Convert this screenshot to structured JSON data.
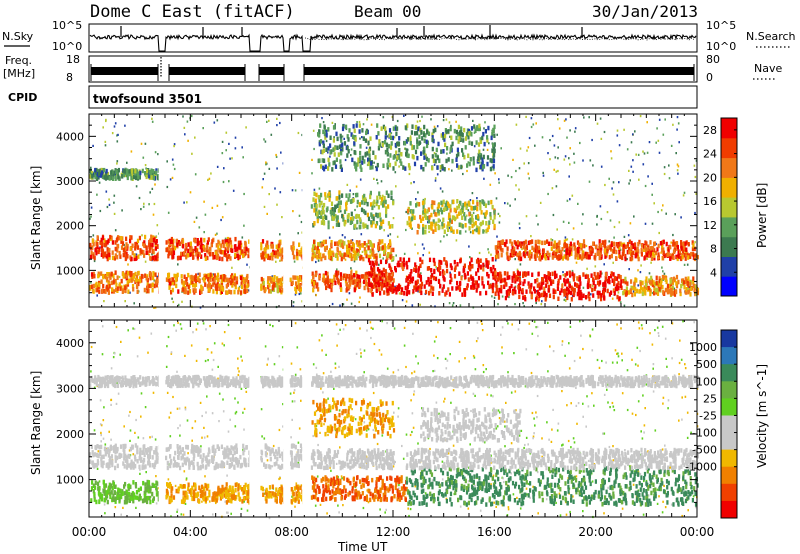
{
  "header": {
    "station": "Dome C East (fitACF)",
    "beam": "Beam 00",
    "date": "30/Jan/2013"
  },
  "strips": {
    "nsky_label": "N.Sky",
    "nsky_ticks": [
      "10^5",
      "10^0"
    ],
    "nsearch_label": "N.Search",
    "nsearch_ticks": [
      "10^5",
      "10^0"
    ],
    "freq_label_1": "Freq.",
    "freq_label_2": "[MHz]",
    "freq_ticks": [
      "18",
      "8"
    ],
    "nave_label": "Nave",
    "nave_ticks": [
      "80",
      "0"
    ],
    "cpid_label": "CPID",
    "cpid_value": "twofsound 3501"
  },
  "panels": {
    "ylabel": "Slant Range [km]",
    "xlabel": "Time UT",
    "y_ticks": [
      "4000",
      "3000",
      "2000",
      "1000"
    ],
    "x_ticks": [
      "00:00",
      "04:00",
      "08:00",
      "12:00",
      "16:00",
      "20:00",
      "00:00"
    ]
  },
  "power_bar": {
    "label": "Power [dB]",
    "ticks": [
      "28",
      "24",
      "20",
      "16",
      "12",
      "8",
      "4"
    ],
    "colors": [
      "#0000ff",
      "#2040a8",
      "#3c7a50",
      "#5aa05a",
      "#b8c830",
      "#f0b000",
      "#f07818",
      "#f03c00",
      "#f00000"
    ]
  },
  "velocity_bar": {
    "label": "Velocity [m s^-1]",
    "ticks": [
      "1000",
      "500",
      "100",
      "25",
      "-25",
      "-100",
      "-500",
      "-1000"
    ],
    "colors": [
      "#1838a0",
      "#2c78b8",
      "#3a8a5a",
      "#6ab040",
      "#60d020",
      "#c8c8c8",
      "#c8c8c8",
      "#f0b800",
      "#f08000",
      "#f04000",
      "#f00000"
    ]
  },
  "chart_data": [
    {
      "type": "heatmap",
      "title": "Power [dB]",
      "xlabel": "Time UT",
      "ylabel": "Slant Range [km]",
      "xlim": [
        "00:00",
        "24:00"
      ],
      "ylim": [
        180,
        4500
      ],
      "clim": [
        0,
        30
      ],
      "data_gaps_ut": [
        [
          "02:45",
          "03:00"
        ],
        [
          "06:20",
          "06:45"
        ],
        [
          "07:40",
          "07:55"
        ],
        [
          "08:25",
          "08:45"
        ]
      ],
      "echo_regions": [
        {
          "time": [
            "00:00",
            "02:45"
          ],
          "range": [
            1300,
            1800
          ],
          "value": 24
        },
        {
          "time": [
            "00:00",
            "02:45"
          ],
          "range": [
            550,
            1000
          ],
          "value": 22
        },
        {
          "time": [
            "00:00",
            "02:45"
          ],
          "range": [
            3100,
            3300
          ],
          "value": 10
        },
        {
          "time": [
            "03:00",
            "06:20"
          ],
          "range": [
            1300,
            1750
          ],
          "value": 24
        },
        {
          "time": [
            "03:00",
            "06:20"
          ],
          "range": [
            550,
            950
          ],
          "value": 22
        },
        {
          "time": [
            "06:45",
            "08:25"
          ],
          "range": [
            1300,
            1700
          ],
          "value": 22
        },
        {
          "time": [
            "06:45",
            "08:25"
          ],
          "range": [
            550,
            900
          ],
          "value": 20
        },
        {
          "time": [
            "08:45",
            "12:00"
          ],
          "range": [
            1300,
            1700
          ],
          "value": 20
        },
        {
          "time": [
            "08:45",
            "12:00"
          ],
          "range": [
            2000,
            2800
          ],
          "value": 14
        },
        {
          "time": [
            "08:45",
            "12:00"
          ],
          "range": [
            600,
            1000
          ],
          "value": 24
        },
        {
          "time": [
            "11:00",
            "16:00"
          ],
          "range": [
            500,
            1300
          ],
          "value": 28
        },
        {
          "time": [
            "12:30",
            "16:00"
          ],
          "range": [
            1900,
            2600
          ],
          "value": 16
        },
        {
          "time": [
            "16:00",
            "21:00"
          ],
          "range": [
            1300,
            1700
          ],
          "value": 24
        },
        {
          "time": [
            "16:00",
            "21:00"
          ],
          "range": [
            400,
            1000
          ],
          "value": 28
        },
        {
          "time": [
            "21:00",
            "24:00"
          ],
          "range": [
            1300,
            1700
          ],
          "value": 24
        },
        {
          "time": [
            "21:00",
            "24:00"
          ],
          "range": [
            500,
            900
          ],
          "value": 20
        },
        {
          "time": [
            "09:00",
            "16:00"
          ],
          "range": [
            3300,
            4300
          ],
          "value": 10
        }
      ]
    },
    {
      "type": "heatmap",
      "title": "Velocity [m s^-1]",
      "xlabel": "Time UT",
      "ylabel": "Slant Range [km]",
      "xlim": [
        "00:00",
        "24:00"
      ],
      "ylim": [
        180,
        4500
      ],
      "clim": [
        -1000,
        1000
      ],
      "data_gaps_ut": [
        [
          "02:45",
          "03:00"
        ],
        [
          "06:20",
          "06:45"
        ],
        [
          "07:40",
          "07:55"
        ],
        [
          "08:25",
          "08:45"
        ]
      ],
      "echo_regions": [
        {
          "time": [
            "00:00",
            "08:25"
          ],
          "range": [
            1300,
            1800
          ],
          "value": 0
        },
        {
          "time": [
            "00:00",
            "02:45"
          ],
          "range": [
            550,
            1000
          ],
          "value": 100
        },
        {
          "time": [
            "03:00",
            "06:20"
          ],
          "range": [
            550,
            950
          ],
          "value": -100
        },
        {
          "time": [
            "06:45",
            "08:25"
          ],
          "range": [
            550,
            900
          ],
          "value": -100
        },
        {
          "time": [
            "08:45",
            "12:30"
          ],
          "range": [
            600,
            1100
          ],
          "value": -500
        },
        {
          "time": [
            "08:45",
            "12:00"
          ],
          "range": [
            1300,
            1700
          ],
          "value": 0
        },
        {
          "time": [
            "08:45",
            "12:00"
          ],
          "range": [
            2000,
            2800
          ],
          "value": -100
        },
        {
          "time": [
            "12:30",
            "24:00"
          ],
          "range": [
            500,
            1300
          ],
          "value": 300
        },
        {
          "time": [
            "12:30",
            "24:00"
          ],
          "range": [
            1300,
            1700
          ],
          "value": 0
        },
        {
          "time": [
            "13:00",
            "17:00"
          ],
          "range": [
            1900,
            2600
          ],
          "value": 0
        },
        {
          "time": [
            "00:00",
            "24:00"
          ],
          "range": [
            3100,
            3300
          ],
          "value": 0
        }
      ]
    }
  ]
}
